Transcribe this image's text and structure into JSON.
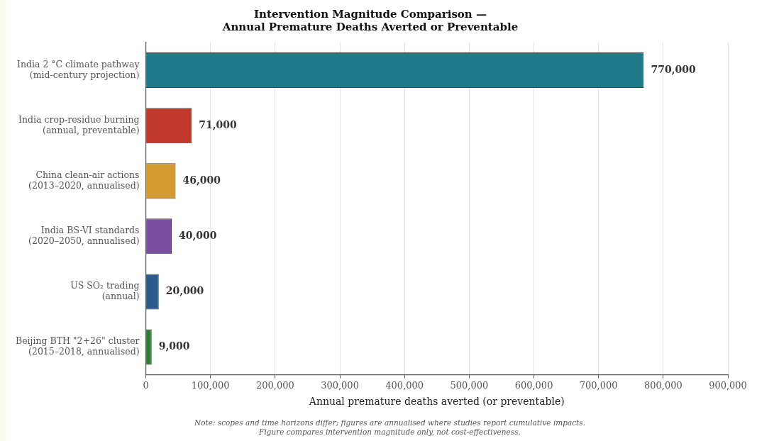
{
  "chart_data": {
    "type": "bar",
    "orientation": "horizontal",
    "title": "Intervention Magnitude Comparison —\nAnnual Premature Deaths Averted or Preventable",
    "xlabel": "Annual premature deaths averted (or preventable)",
    "categories": [
      "India 2 °C climate pathway\n(mid-century projection)",
      "India crop-residue burning\n(annual, preventable)",
      "China clean-air actions\n(2013–2020, annualised)",
      "India BS-VI standards\n(2020–2050, annualised)",
      "US SO₂ trading\n(annual)",
      "Beijing BTH \"2+26\" cluster\n(2015–2018, annualised)"
    ],
    "values": [
      770000,
      71000,
      46000,
      40000,
      20000,
      9000
    ],
    "colors": [
      "#1f7a8c",
      "#c0392b",
      "#d49a30",
      "#7b4fa0",
      "#2c5a8a",
      "#2e7d32"
    ],
    "xlim": [
      0,
      900000
    ],
    "xticks": [
      0,
      {
        "value": 100000,
        "label": "100,000"
      },
      {
        "value": 200000,
        "label": "200,000"
      },
      {
        "value": 300000,
        "label": "300,000"
      },
      {
        "value": 400000,
        "label": "400,000"
      },
      {
        "value": 500000,
        "label": "500,000"
      },
      {
        "value": 600000,
        "label": "600,000"
      },
      {
        "value": 700000,
        "label": "700,000"
      },
      {
        "value": 800000,
        "label": "800,000"
      },
      {
        "value": 900000,
        "label": "900,000"
      }
    ],
    "value_labels": [
      "770,000",
      "71,000",
      "46,000",
      "40,000",
      "20,000",
      "9,000"
    ],
    "grid": "x",
    "legend": false,
    "annotations": [
      "Note: scopes and time horizons differ; figures are annualised where studies report cumulative impacts.\nFigure compares intervention magnitude only, not cost-effectiveness."
    ]
  }
}
